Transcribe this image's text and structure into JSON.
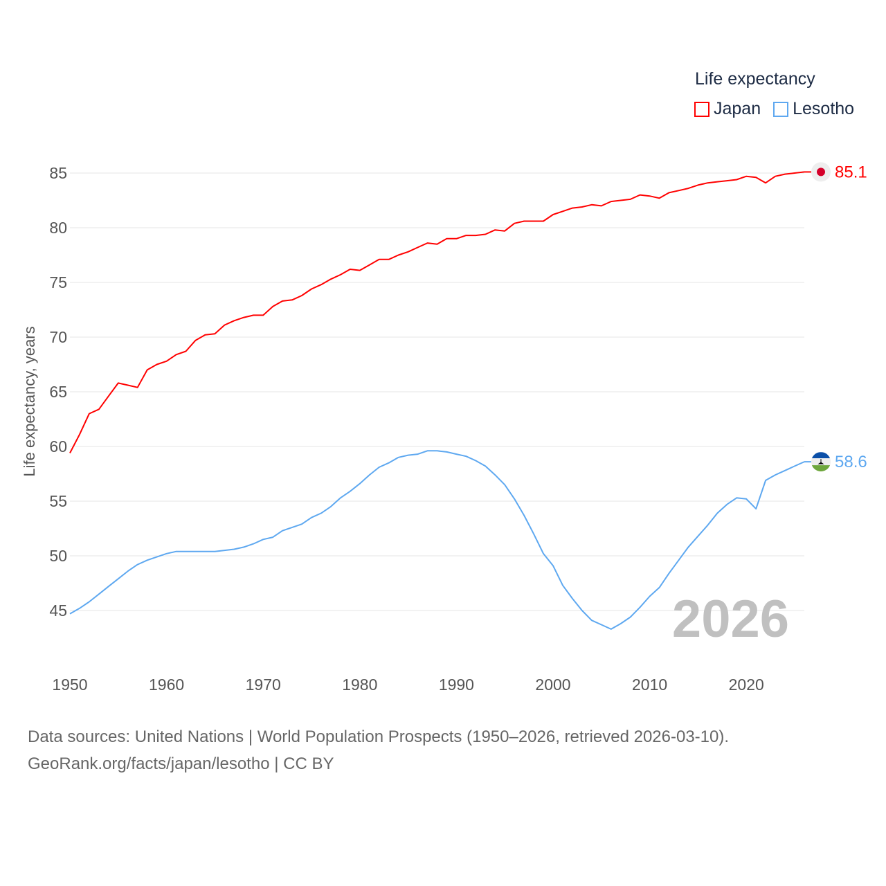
{
  "chart_data": {
    "type": "line",
    "title": "",
    "legend_title": "Life expectancy",
    "legend_placement": "top-right",
    "ylabel": "Life expectancy, years",
    "xlabel": "",
    "xlim": [
      1950,
      2026
    ],
    "ylim": [
      42,
      87
    ],
    "x_ticks": [
      1950,
      1960,
      1970,
      1980,
      1990,
      2000,
      2010,
      2020
    ],
    "y_ticks": [
      45,
      50,
      55,
      60,
      65,
      70,
      75,
      80,
      85
    ],
    "grid": true,
    "current_year": "2026",
    "x": [
      1950,
      1951,
      1952,
      1953,
      1954,
      1955,
      1956,
      1957,
      1958,
      1959,
      1960,
      1961,
      1962,
      1963,
      1964,
      1965,
      1966,
      1967,
      1968,
      1969,
      1970,
      1971,
      1972,
      1973,
      1974,
      1975,
      1976,
      1977,
      1978,
      1979,
      1980,
      1981,
      1982,
      1983,
      1984,
      1985,
      1986,
      1987,
      1988,
      1989,
      1990,
      1991,
      1992,
      1993,
      1994,
      1995,
      1996,
      1997,
      1998,
      1999,
      2000,
      2001,
      2002,
      2003,
      2004,
      2005,
      2006,
      2007,
      2008,
      2009,
      2010,
      2011,
      2012,
      2013,
      2014,
      2015,
      2016,
      2017,
      2018,
      2019,
      2020,
      2021,
      2022,
      2023,
      2024,
      2025,
      2026
    ],
    "series": [
      {
        "name": "Japan",
        "color": "#ff0000",
        "end_label": "85.1",
        "values": [
          59.4,
          61.1,
          63.0,
          63.4,
          64.6,
          65.8,
          65.6,
          65.4,
          67.0,
          67.5,
          67.8,
          68.4,
          68.7,
          69.7,
          70.2,
          70.3,
          71.1,
          71.5,
          71.8,
          72.0,
          72.0,
          72.8,
          73.3,
          73.4,
          73.8,
          74.4,
          74.8,
          75.3,
          75.7,
          76.2,
          76.1,
          76.6,
          77.1,
          77.1,
          77.5,
          77.8,
          78.2,
          78.6,
          78.5,
          79.0,
          79.0,
          79.3,
          79.3,
          79.4,
          79.8,
          79.7,
          80.4,
          80.6,
          80.6,
          80.6,
          81.2,
          81.5,
          81.8,
          81.9,
          82.1,
          82.0,
          82.4,
          82.5,
          82.6,
          83.0,
          82.9,
          82.7,
          83.2,
          83.4,
          83.6,
          83.9,
          84.1,
          84.2,
          84.3,
          84.4,
          84.7,
          84.6,
          84.1,
          84.7,
          84.9,
          85.0,
          85.1
        ]
      },
      {
        "name": "Lesotho",
        "color": "#5ea8f0",
        "end_label": "58.6",
        "values": [
          44.7,
          45.2,
          45.8,
          46.5,
          47.2,
          47.9,
          48.6,
          49.2,
          49.6,
          49.9,
          50.2,
          50.4,
          50.4,
          50.4,
          50.4,
          50.4,
          50.5,
          50.6,
          50.8,
          51.1,
          51.5,
          51.7,
          52.3,
          52.6,
          52.9,
          53.5,
          53.9,
          54.5,
          55.3,
          55.9,
          56.6,
          57.4,
          58.1,
          58.5,
          59.0,
          59.2,
          59.3,
          59.6,
          59.6,
          59.5,
          59.3,
          59.1,
          58.7,
          58.2,
          57.4,
          56.5,
          55.2,
          53.7,
          52.0,
          50.2,
          49.1,
          47.3,
          46.1,
          45.0,
          44.1,
          43.7,
          43.3,
          43.8,
          44.4,
          45.3,
          46.3,
          47.1,
          48.4,
          49.6,
          50.8,
          51.8,
          52.8,
          53.9,
          54.7,
          55.3,
          55.2,
          54.3,
          56.9,
          57.4,
          57.8,
          58.2,
          58.6
        ]
      }
    ]
  },
  "footer": {
    "source_line": "Data sources: United Nations | World Population Prospects (1950–2026, retrieved 2026-03-10).",
    "credit_line": "GeoRank.org/facts/japan/lesotho | CC BY"
  }
}
